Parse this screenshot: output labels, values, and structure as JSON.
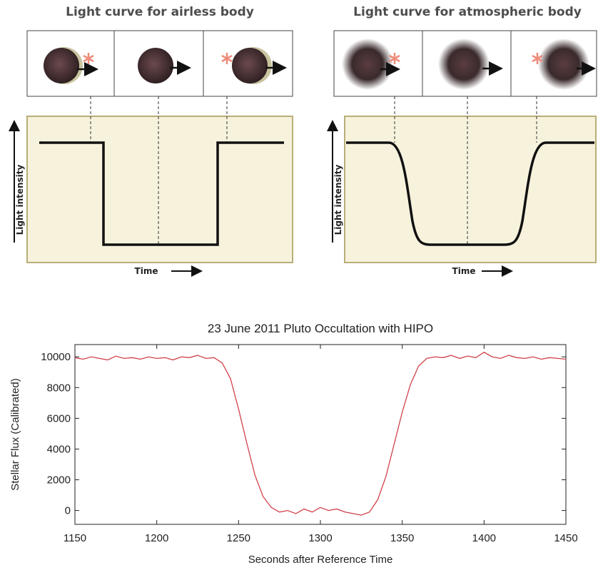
{
  "diagrams": [
    {
      "title": "Light curve for airless body",
      "y_label": "Light intensity",
      "x_label": "Time"
    },
    {
      "title": "Light curve for atmospheric body",
      "y_label": "Light intensity",
      "x_label": "Time"
    }
  ],
  "chart_data": {
    "type": "line",
    "title": "23 June 2011 Pluto Occultation with HIPO",
    "x_label": "Seconds after Reference Time",
    "y_label": "Stellar Flux (Calibrated)",
    "color": "#d0424a",
    "x": [
      1150,
      1155,
      1160,
      1165,
      1170,
      1175,
      1180,
      1185,
      1190,
      1195,
      1200,
      1205,
      1210,
      1215,
      1220,
      1225,
      1230,
      1235,
      1240,
      1245,
      1250,
      1255,
      1260,
      1265,
      1270,
      1275,
      1280,
      1285,
      1290,
      1295,
      1300,
      1305,
      1310,
      1315,
      1320,
      1325,
      1330,
      1335,
      1340,
      1345,
      1350,
      1355,
      1360,
      1365,
      1370,
      1375,
      1380,
      1385,
      1390,
      1395,
      1400,
      1405,
      1410,
      1415,
      1420,
      1425,
      1430,
      1435,
      1440,
      1445,
      1450
    ],
    "values": [
      9950,
      9850,
      10000,
      9900,
      9800,
      10050,
      9900,
      9950,
      9850,
      10000,
      9900,
      9950,
      9800,
      10000,
      9950,
      10100,
      9900,
      9950,
      9600,
      8600,
      6600,
      4400,
      2300,
      900,
      200,
      -100,
      0,
      -200,
      100,
      -100,
      200,
      0,
      100,
      -100,
      -200,
      -300,
      -100,
      700,
      2200,
      4300,
      6400,
      8200,
      9400,
      9900,
      10000,
      9950,
      10100,
      9900,
      10050,
      9950,
      10300,
      10000,
      9900,
      10100,
      9950,
      9900,
      10000,
      9850,
      9950,
      9900,
      9850
    ],
    "xlim": [
      1150,
      1450
    ],
    "xticks": [
      1150,
      1200,
      1250,
      1300,
      1350,
      1400,
      1450
    ],
    "ylim": [
      -900,
      10800
    ],
    "yticks": [
      0,
      2000,
      4000,
      6000,
      8000,
      10000
    ]
  }
}
